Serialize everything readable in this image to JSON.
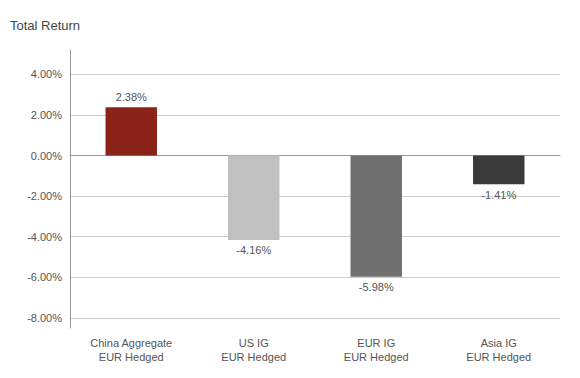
{
  "chart_data": {
    "type": "bar",
    "ylabel": "Total Return",
    "categories": [
      "China Aggregate\nEUR Hedged",
      "US IG\nEUR Hedged",
      "EUR IG\nEUR Hedged",
      "Asia IG\nEUR Hedged"
    ],
    "values": [
      2.38,
      -4.16,
      -5.98,
      -1.41
    ],
    "value_labels": [
      "2.38%",
      "-4.16%",
      "-5.98%",
      "-1.41%"
    ],
    "colors": [
      "#8B2318",
      "#C0C0C0",
      "#707070",
      "#3A3A3A"
    ],
    "ylim": [
      -8.5,
      5.2
    ],
    "yticks": [
      {
        "value": 4.0,
        "label": "4.00%"
      },
      {
        "value": 2.0,
        "label": "2.00%"
      },
      {
        "value": 0.0,
        "label": "0.00%"
      },
      {
        "value": -2.0,
        "label": "-2.00%"
      },
      {
        "value": -4.0,
        "label": "-4.00%"
      },
      {
        "value": -6.0,
        "label": "-6.00%"
      },
      {
        "value": -8.0,
        "label": "-8.00%"
      }
    ],
    "grid": true,
    "data_labels": true
  }
}
